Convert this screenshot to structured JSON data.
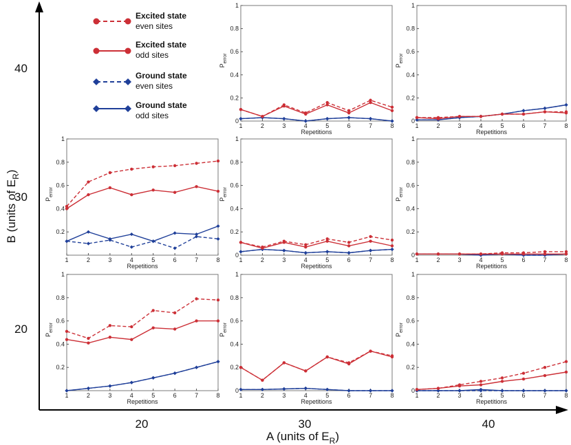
{
  "colors": {
    "excited": "#cc2f36",
    "ground": "#1f3f99",
    "axis": "#000000",
    "panel_border": "#7a7a7a"
  },
  "figure": {
    "outer_xlabel": {
      "prefix": "A  (units of E",
      "sub": "R",
      "suffix": ")"
    },
    "outer_ylabel": {
      "prefix": "B  (units of E",
      "sub": "R",
      "suffix": ")"
    },
    "outer_xticks": [
      "20",
      "30",
      "40"
    ],
    "outer_yticks": [
      "20",
      "30",
      "40"
    ]
  },
  "legend": [
    {
      "line1": "Excited state",
      "line2": "even sites",
      "color_key": "excited",
      "style": "dashed",
      "marker": "circle"
    },
    {
      "line1": "Excited state",
      "line2": "odd sites",
      "color_key": "excited",
      "style": "solid",
      "marker": "circle"
    },
    {
      "line1": "Ground state",
      "line2": "even sites",
      "color_key": "ground",
      "style": "dashed",
      "marker": "diamond"
    },
    {
      "line1": "Ground state",
      "line2": "odd sites",
      "color_key": "ground",
      "style": "solid",
      "marker": "diamond"
    }
  ],
  "chart_data": [
    {
      "id": "A30-B40",
      "row": 0,
      "col": 1,
      "type": "line",
      "xlabel": "Repetitions",
      "ylabel": "P",
      "ylabel_sub": "error",
      "ylim": [
        0,
        1
      ],
      "yticks": [
        "0",
        "0.2",
        "0.4",
        "0.6",
        "0.8",
        "1"
      ],
      "x": [
        1,
        2,
        3,
        4,
        5,
        6,
        7,
        8
      ],
      "xticks": [
        "1",
        "2",
        "3",
        "4",
        "5",
        "6",
        "7",
        "8"
      ],
      "series": [
        {
          "name": "Excited state even sites",
          "values": [
            0.1,
            0.04,
            0.14,
            0.07,
            0.16,
            0.09,
            0.18,
            0.12
          ]
        },
        {
          "name": "Excited state odd sites",
          "values": [
            0.1,
            0.04,
            0.13,
            0.06,
            0.14,
            0.07,
            0.16,
            0.09
          ]
        },
        {
          "name": "Ground state even sites",
          "values": [
            0.02,
            0.03,
            0.02,
            0.0,
            0.02,
            0.03,
            0.02,
            0.0
          ]
        },
        {
          "name": "Ground state odd sites",
          "values": [
            0.02,
            0.03,
            0.02,
            0.0,
            0.02,
            0.03,
            0.02,
            0.0
          ]
        }
      ]
    },
    {
      "id": "A40-B40",
      "row": 0,
      "col": 2,
      "type": "line",
      "xlabel": "Repetitions",
      "ylabel": "P",
      "ylabel_sub": "error",
      "ylim": [
        0,
        1
      ],
      "yticks": [
        "0",
        "0.2",
        "0.4",
        "0.6",
        "0.8",
        "1"
      ],
      "x": [
        1,
        2,
        3,
        4,
        5,
        6,
        7,
        8
      ],
      "xticks": [
        "1",
        "2",
        "3",
        "4",
        "5",
        "6",
        "7",
        "8"
      ],
      "series": [
        {
          "name": "Excited state even sites",
          "values": [
            0.03,
            0.03,
            0.04,
            0.04,
            0.06,
            0.06,
            0.08,
            0.08
          ]
        },
        {
          "name": "Excited state odd sites",
          "values": [
            0.03,
            0.02,
            0.04,
            0.04,
            0.06,
            0.06,
            0.08,
            0.07
          ]
        },
        {
          "name": "Ground state even sites",
          "values": [
            0.01,
            0.01,
            0.03,
            0.04,
            0.06,
            0.09,
            0.11,
            0.14
          ]
        },
        {
          "name": "Ground state odd sites",
          "values": [
            0.01,
            0.01,
            0.03,
            0.04,
            0.06,
            0.09,
            0.11,
            0.14
          ]
        }
      ]
    },
    {
      "id": "A20-B30",
      "row": 1,
      "col": 0,
      "type": "line",
      "xlabel": "Repetitions",
      "ylabel": "P",
      "ylabel_sub": "error",
      "ylim": [
        0,
        1
      ],
      "yticks": [
        "",
        "0.2",
        "0.4",
        "0.6",
        "0.8",
        "1"
      ],
      "x": [
        1,
        2,
        3,
        4,
        5,
        6,
        7,
        8
      ],
      "xticks": [
        "1",
        "2",
        "3",
        "4",
        "5",
        "6",
        "7",
        "8"
      ],
      "series": [
        {
          "name": "Excited state even sites",
          "values": [
            0.42,
            0.63,
            0.71,
            0.74,
            0.76,
            0.77,
            0.79,
            0.81
          ]
        },
        {
          "name": "Excited state odd sites",
          "values": [
            0.4,
            0.52,
            0.58,
            0.52,
            0.56,
            0.54,
            0.59,
            0.55
          ]
        },
        {
          "name": "Ground state even sites",
          "values": [
            0.12,
            0.1,
            0.13,
            0.07,
            0.12,
            0.06,
            0.16,
            0.14
          ]
        },
        {
          "name": "Ground state odd sites",
          "values": [
            0.12,
            0.2,
            0.14,
            0.18,
            0.12,
            0.19,
            0.18,
            0.25
          ]
        }
      ]
    },
    {
      "id": "A30-B30",
      "row": 1,
      "col": 1,
      "type": "line",
      "xlabel": "Repetitions",
      "ylabel": "P",
      "ylabel_sub": "error",
      "ylim": [
        0,
        1
      ],
      "yticks": [
        "0",
        "0.2",
        "0.4",
        "0.6",
        "0.8",
        "1"
      ],
      "x": [
        1,
        2,
        3,
        4,
        5,
        6,
        7,
        8
      ],
      "xticks": [
        "1",
        "2",
        "3",
        "4",
        "5",
        "6",
        "7",
        "8"
      ],
      "series": [
        {
          "name": "Excited state even sites",
          "values": [
            0.11,
            0.07,
            0.12,
            0.09,
            0.14,
            0.11,
            0.16,
            0.13
          ]
        },
        {
          "name": "Excited state odd sites",
          "values": [
            0.11,
            0.06,
            0.11,
            0.07,
            0.12,
            0.08,
            0.12,
            0.08
          ]
        },
        {
          "name": "Ground state even sites",
          "values": [
            0.03,
            0.05,
            0.04,
            0.02,
            0.03,
            0.02,
            0.04,
            0.05
          ]
        },
        {
          "name": "Ground state odd sites",
          "values": [
            0.03,
            0.05,
            0.04,
            0.02,
            0.03,
            0.02,
            0.04,
            0.05
          ]
        }
      ]
    },
    {
      "id": "A40-B30",
      "row": 1,
      "col": 2,
      "type": "line",
      "xlabel": "Repetitions",
      "ylabel": "P",
      "ylabel_sub": "error",
      "ylim": [
        0,
        1
      ],
      "yticks": [
        "0",
        "0.2",
        "0.4",
        "0.6",
        "0.8",
        "1"
      ],
      "x": [
        1,
        2,
        3,
        4,
        5,
        6,
        7,
        8
      ],
      "xticks": [
        "1",
        "2",
        "3",
        "4",
        "5",
        "6",
        "7",
        "8"
      ],
      "series": [
        {
          "name": "Excited state even sites",
          "values": [
            0.01,
            0.01,
            0.01,
            0.01,
            0.02,
            0.02,
            0.03,
            0.03
          ]
        },
        {
          "name": "Excited state odd sites",
          "values": [
            0.01,
            0.01,
            0.01,
            0.01,
            0.01,
            0.01,
            0.01,
            0.01
          ]
        },
        {
          "name": "Ground state even sites",
          "values": [
            0.01,
            0.01,
            0.01,
            0.0,
            0.01,
            0.0,
            0.0,
            0.01
          ]
        },
        {
          "name": "Ground state odd sites",
          "values": [
            0.01,
            0.01,
            0.01,
            0.0,
            0.01,
            0.0,
            0.0,
            0.01
          ]
        }
      ]
    },
    {
      "id": "A20-B20",
      "row": 2,
      "col": 0,
      "type": "line",
      "xlabel": "Repetitions",
      "ylabel": "P",
      "ylabel_sub": "error",
      "ylim": [
        0,
        1
      ],
      "yticks": [
        "",
        "0.2",
        "0.4",
        "0.6",
        "0.8",
        "1"
      ],
      "x": [
        1,
        2,
        3,
        4,
        5,
        6,
        7,
        8
      ],
      "xticks": [
        "1",
        "2",
        "3",
        "4",
        "5",
        "6",
        "7",
        "8"
      ],
      "series": [
        {
          "name": "Excited state even sites",
          "values": [
            0.51,
            0.45,
            0.56,
            0.55,
            0.69,
            0.67,
            0.79,
            0.78
          ]
        },
        {
          "name": "Excited state odd sites",
          "values": [
            0.44,
            0.41,
            0.46,
            0.44,
            0.54,
            0.53,
            0.6,
            0.6
          ]
        },
        {
          "name": "Ground state even sites",
          "values": [
            0.0,
            0.02,
            0.04,
            0.07,
            0.11,
            0.15,
            0.2,
            0.25
          ]
        },
        {
          "name": "Ground state odd sites",
          "values": [
            0.0,
            0.02,
            0.04,
            0.07,
            0.11,
            0.15,
            0.2,
            0.25
          ]
        }
      ]
    },
    {
      "id": "A30-B20",
      "row": 2,
      "col": 1,
      "type": "line",
      "xlabel": "Repetitions",
      "ylabel": "P",
      "ylabel_sub": "error",
      "ylim": [
        0,
        1
      ],
      "yticks": [
        "0",
        "0.2",
        "0.4",
        "0.6",
        "0.8",
        "1"
      ],
      "x": [
        1,
        2,
        3,
        4,
        5,
        6,
        7,
        8
      ],
      "xticks": [
        "1",
        "2",
        "3",
        "4",
        "5",
        "6",
        "7",
        "8"
      ],
      "series": [
        {
          "name": "Excited state even sites",
          "values": [
            0.2,
            0.09,
            0.24,
            0.17,
            0.29,
            0.24,
            0.34,
            0.3
          ]
        },
        {
          "name": "Excited state odd sites",
          "values": [
            0.2,
            0.09,
            0.24,
            0.17,
            0.29,
            0.23,
            0.34,
            0.29
          ]
        },
        {
          "name": "Ground state even sites",
          "values": [
            0.01,
            0.01,
            0.015,
            0.02,
            0.01,
            0.0,
            0.0,
            0.0
          ]
        },
        {
          "name": "Ground state odd sites",
          "values": [
            0.01,
            0.01,
            0.015,
            0.02,
            0.01,
            0.0,
            0.0,
            0.0
          ]
        }
      ]
    },
    {
      "id": "A40-B20",
      "row": 2,
      "col": 2,
      "type": "line",
      "xlabel": "Repetitions",
      "ylabel": "P",
      "ylabel_sub": "error",
      "ylim": [
        0,
        1
      ],
      "yticks": [
        "0",
        "0.2",
        "0.4",
        "0.6",
        "0.8",
        "1"
      ],
      "x": [
        1,
        2,
        3,
        4,
        5,
        6,
        7,
        8
      ],
      "xticks": [
        "1",
        "2",
        "3",
        "4",
        "5",
        "6",
        "7",
        "8"
      ],
      "series": [
        {
          "name": "Excited state even sites",
          "values": [
            0.01,
            0.02,
            0.05,
            0.08,
            0.11,
            0.15,
            0.2,
            0.25
          ]
        },
        {
          "name": "Excited state odd sites",
          "values": [
            0.01,
            0.02,
            0.04,
            0.05,
            0.08,
            0.1,
            0.13,
            0.16
          ]
        },
        {
          "name": "Ground state even sites",
          "values": [
            0.0,
            0.0,
            0.0,
            0.0,
            0.0,
            0.0,
            0.0,
            0.0
          ]
        },
        {
          "name": "Ground state odd sites",
          "values": [
            0.0,
            0.0,
            0.0,
            0.01,
            0.0,
            0.0,
            0.0,
            0.0
          ]
        }
      ]
    }
  ]
}
